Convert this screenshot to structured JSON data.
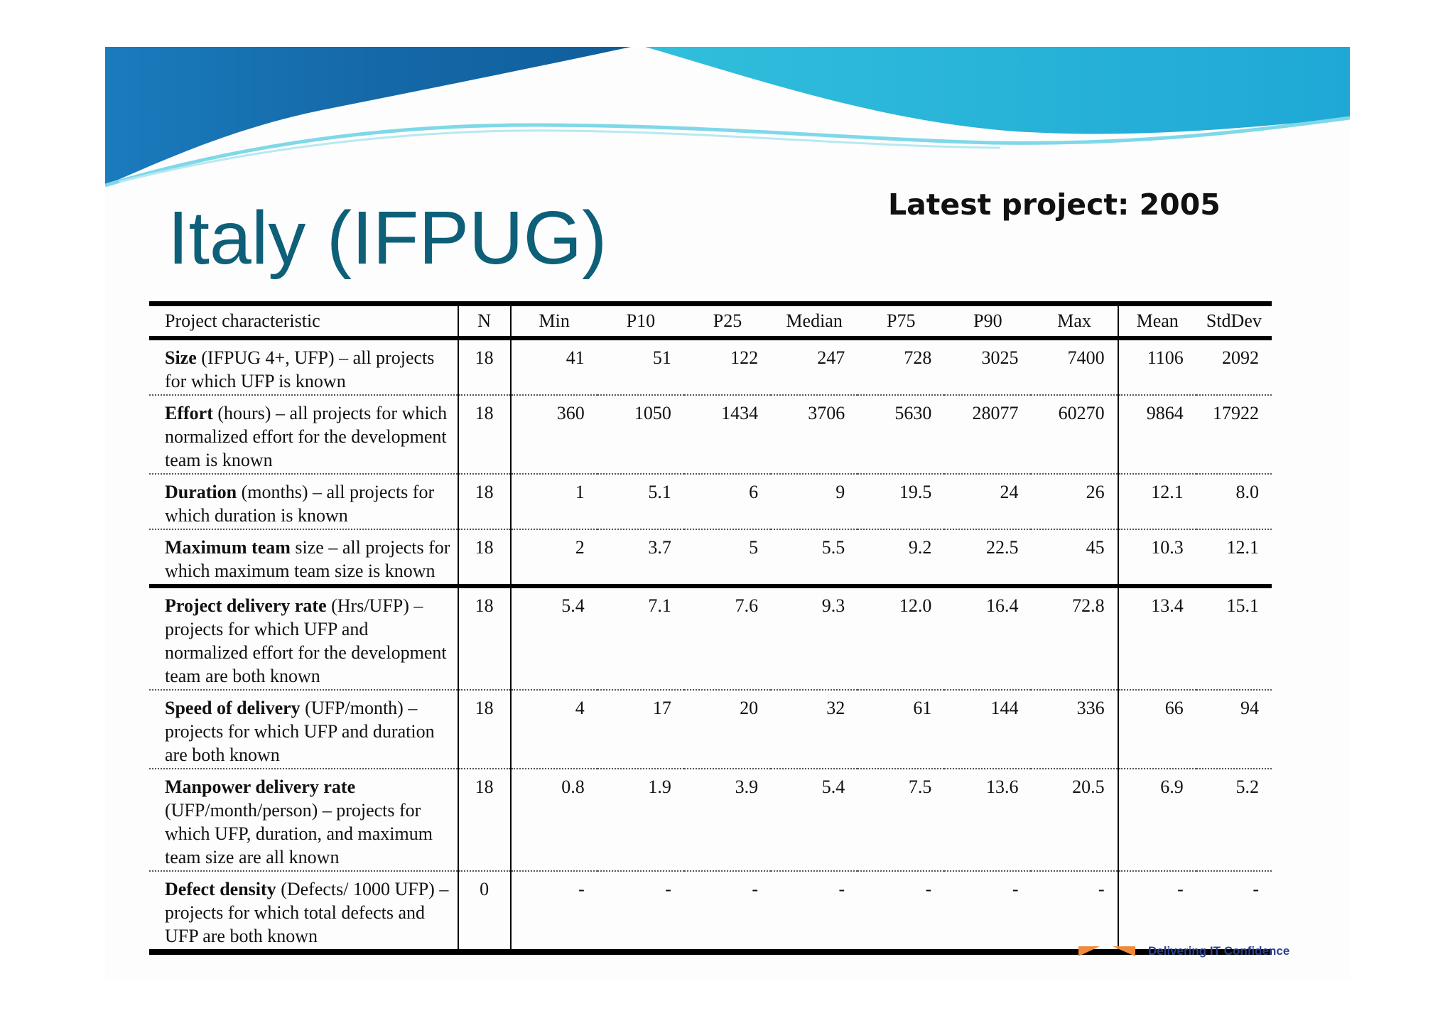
{
  "header": {
    "title": "Italy (IFPUG)",
    "latest": "Latest project: 2005"
  },
  "table": {
    "columns": [
      "Project characteristic",
      "N",
      "Min",
      "P10",
      "P25",
      "Median",
      "P75",
      "P90",
      "Max",
      "Mean",
      "StdDev"
    ],
    "rows": [
      {
        "lead": "Size",
        "rest": " (IFPUG 4+, UFP) – all projects for which UFP is known",
        "values": [
          "18",
          "41",
          "51",
          "122",
          "247",
          "728",
          "3025",
          "7400",
          "1106",
          "2092"
        ]
      },
      {
        "lead": "Effort",
        "rest": " (hours) – all projects for which normalized effort for the development team is known",
        "values": [
          "18",
          "360",
          "1050",
          "1434",
          "3706",
          "5630",
          "28077",
          "60270",
          "9864",
          "17922"
        ]
      },
      {
        "lead": "Duration",
        "rest": " (months) – all projects for which duration is known",
        "values": [
          "18",
          "1",
          "5.1",
          "6",
          "9",
          "19.5",
          "24",
          "26",
          "12.1",
          "8.0"
        ]
      },
      {
        "lead": "Maximum team",
        "rest": " size – all projects for which maximum team size is known",
        "values": [
          "18",
          "2",
          "3.7",
          "5",
          "5.5",
          "9.2",
          "22.5",
          "45",
          "10.3",
          "12.1"
        ]
      },
      {
        "lead": "Project delivery rate",
        "rest": " (Hrs/UFP) – projects for which UFP and normalized effort for the development team are both known",
        "values": [
          "18",
          "5.4",
          "7.1",
          "7.6",
          "9.3",
          "12.0",
          "16.4",
          "72.8",
          "13.4",
          "15.1"
        ]
      },
      {
        "lead": "Speed of delivery",
        "rest": " (UFP/month) – projects for which UFP and duration are both known",
        "values": [
          "18",
          "4",
          "17",
          "20",
          "32",
          "61",
          "144",
          "336",
          "66",
          "94"
        ]
      },
      {
        "lead": "Manpower delivery rate",
        "rest": " (UFP/month/person) – projects for which UFP, duration, and maximum team size are all known",
        "values": [
          "18",
          "0.8",
          "1.9",
          "3.9",
          "5.4",
          "7.5",
          "13.6",
          "20.5",
          "6.9",
          "5.2"
        ]
      },
      {
        "lead": "Defect density",
        "rest": " (Defects/ 1000 UFP) – projects for which total defects and UFP are both known",
        "values": [
          "0",
          "-",
          "-",
          "-",
          "-",
          "-",
          "-",
          "-",
          "-",
          "-"
        ]
      }
    ]
  },
  "footer": {
    "tagline": "Delivering IT Confidence"
  },
  "colors": {
    "title": "#0e5f78",
    "banner_dark": "#1569a8",
    "banner_light": "#2fc4d8",
    "footer_text": "#2a3f8f",
    "logo_orange": "#f08a3a"
  }
}
